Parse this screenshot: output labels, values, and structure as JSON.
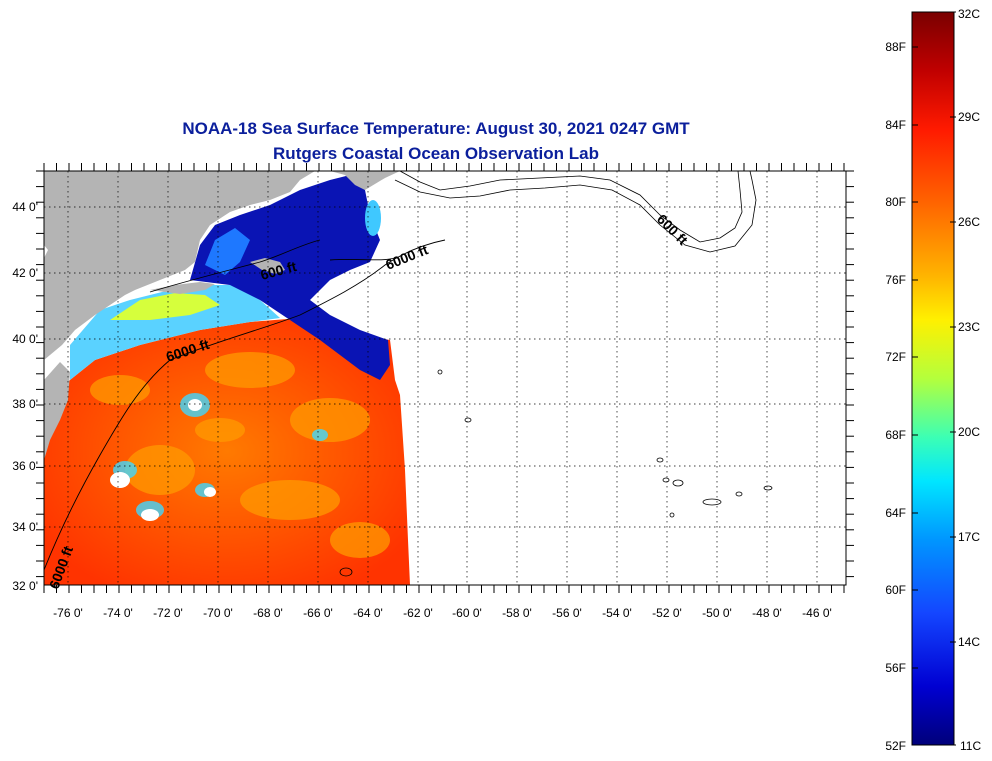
{
  "title": {
    "line1": "NOAA-18 Sea Surface Temperature:  August 30, 2021 0247 GMT",
    "line2": "Rutgers Coastal Ocean Observation Lab"
  },
  "map": {
    "lon_range": [
      -77,
      -45
    ],
    "lat_range": [
      32,
      45
    ],
    "lat_ticks": [
      "44 0'",
      "42 0'",
      "40 0'",
      "38 0'",
      "36 0'",
      "34 0'",
      "32 0'"
    ],
    "lon_ticks": [
      "-76 0'",
      "-74 0'",
      "-72 0'",
      "-70 0'",
      "-68 0'",
      "-66 0'",
      "-64 0'",
      "-62 0'",
      "-60 0'",
      "-58 0'",
      "-56 0'",
      "-54 0'",
      "-52 0'",
      "-50 0'",
      "-48 0'",
      "-46 0'"
    ],
    "contour_labels": [
      "6000 ft",
      "600 ft",
      "6000 ft",
      "600 ft",
      "6000 ft"
    ],
    "land_color": "#b4b4b4",
    "grid": true
  },
  "colorbar": {
    "celsius_labels": [
      "32C",
      "29C",
      "26C",
      "23C",
      "20C",
      "17C",
      "14C",
      "11C"
    ],
    "fahrenheit_labels": [
      "88F",
      "84F",
      "80F",
      "76F",
      "72F",
      "68F",
      "64F",
      "60F",
      "56F",
      "52F"
    ],
    "range_c": [
      11,
      32
    ],
    "colors": [
      "#7a0000",
      "#d40000",
      "#ff3a00",
      "#ff8a00",
      "#ffd400",
      "#f4ff10",
      "#a6ff50",
      "#3dffb4",
      "#00e0ff",
      "#0096ff",
      "#1040ff",
      "#0000c8",
      "#000080"
    ]
  }
}
